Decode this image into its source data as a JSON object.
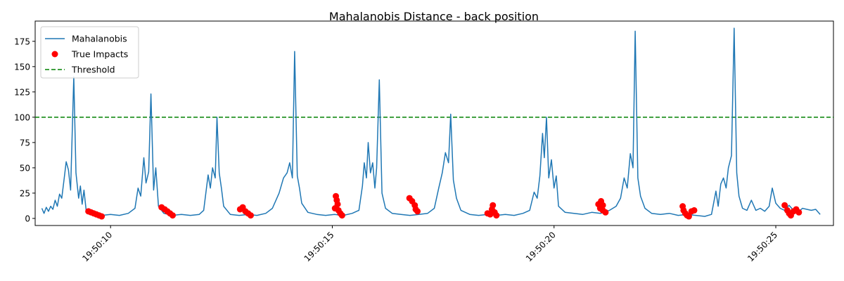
{
  "chart_data": {
    "type": "line",
    "title": "Mahalanobis Distance - back position",
    "xlabel": "",
    "ylabel": "",
    "x_axis": {
      "type": "time",
      "range": [
        "19:50:08.30",
        "19:50:26.30"
      ],
      "ticks": [
        "19:50:10",
        "19:50:15",
        "19:50:20",
        "19:50:25"
      ]
    },
    "y_axis": {
      "range": [
        -7,
        195
      ],
      "ticks": [
        0,
        25,
        50,
        75,
        100,
        125,
        150,
        175
      ]
    },
    "grid": false,
    "legend": {
      "placement": "top-left",
      "entries": [
        {
          "label": "Mahalanobis",
          "kind": "line"
        },
        {
          "label": "True Impacts",
          "kind": "marker"
        },
        {
          "label": "Threshold",
          "kind": "dashed-line"
        }
      ]
    },
    "series": [
      {
        "name": "Mahalanobis",
        "color": "#1f77b4",
        "points": [
          [
            "19:50:08.45",
            10
          ],
          [
            "19:50:08.50",
            5
          ],
          [
            "19:50:08.55",
            11
          ],
          [
            "19:50:08.60",
            7
          ],
          [
            "19:50:08.65",
            12
          ],
          [
            "19:50:08.70",
            9
          ],
          [
            "19:50:08.75",
            18
          ],
          [
            "19:50:08.80",
            12
          ],
          [
            "19:50:08.85",
            24
          ],
          [
            "19:50:08.90",
            20
          ],
          [
            "19:50:08.95",
            38
          ],
          [
            "19:50:09.00",
            56
          ],
          [
            "19:50:09.05",
            48
          ],
          [
            "19:50:09.10",
            28
          ],
          [
            "19:50:09.17",
            140
          ],
          [
            "19:50:09.22",
            45
          ],
          [
            "19:50:09.28",
            20
          ],
          [
            "19:50:09.32",
            32
          ],
          [
            "19:50:09.36",
            14
          ],
          [
            "19:50:09.40",
            28
          ],
          [
            "19:50:09.45",
            8
          ],
          [
            "19:50:09.60",
            4
          ],
          [
            "19:50:09.80",
            3
          ],
          [
            "19:50:10.00",
            4
          ],
          [
            "19:50:10.20",
            3
          ],
          [
            "19:50:10.40",
            5
          ],
          [
            "19:50:10.55",
            10
          ],
          [
            "19:50:10.62",
            30
          ],
          [
            "19:50:10.68",
            22
          ],
          [
            "19:50:10.75",
            60
          ],
          [
            "19:50:10.80",
            35
          ],
          [
            "19:50:10.86",
            46
          ],
          [
            "19:50:10.91",
            123
          ],
          [
            "19:50:10.97",
            28
          ],
          [
            "19:50:11.02",
            50
          ],
          [
            "19:50:11.08",
            12
          ],
          [
            "19:50:11.20",
            5
          ],
          [
            "19:50:11.40",
            3
          ],
          [
            "19:50:11.60",
            4
          ],
          [
            "19:50:11.80",
            3
          ],
          [
            "19:50:12.00",
            4
          ],
          [
            "19:50:12.10",
            8
          ],
          [
            "19:50:12.20",
            43
          ],
          [
            "19:50:12.25",
            30
          ],
          [
            "19:50:12.30",
            50
          ],
          [
            "19:50:12.36",
            40
          ],
          [
            "19:50:12.40",
            100
          ],
          [
            "19:50:12.45",
            45
          ],
          [
            "19:50:12.50",
            30
          ],
          [
            "19:50:12.55",
            12
          ],
          [
            "19:50:12.70",
            4
          ],
          [
            "19:50:12.90",
            3
          ],
          [
            "19:50:13.10",
            4
          ],
          [
            "19:50:13.30",
            3
          ],
          [
            "19:50:13.50",
            5
          ],
          [
            "19:50:13.65",
            10
          ],
          [
            "19:50:13.80",
            25
          ],
          [
            "19:50:13.90",
            40
          ],
          [
            "19:50:13.98",
            45
          ],
          [
            "19:50:14.04",
            55
          ],
          [
            "19:50:14.10",
            40
          ],
          [
            "19:50:14.15",
            165
          ],
          [
            "19:50:14.21",
            42
          ],
          [
            "19:50:14.26",
            30
          ],
          [
            "19:50:14.31",
            15
          ],
          [
            "19:50:14.45",
            6
          ],
          [
            "19:50:14.65",
            4
          ],
          [
            "19:50:14.85",
            3
          ],
          [
            "19:50:15.05",
            4
          ],
          [
            "19:50:15.25",
            3
          ],
          [
            "19:50:15.45",
            5
          ],
          [
            "19:50:15.60",
            8
          ],
          [
            "19:50:15.68",
            32
          ],
          [
            "19:50:15.72",
            55
          ],
          [
            "19:50:15.77",
            40
          ],
          [
            "19:50:15.81",
            75
          ],
          [
            "19:50:15.86",
            45
          ],
          [
            "19:50:15.91",
            55
          ],
          [
            "19:50:15.96",
            30
          ],
          [
            "19:50:16.00",
            50
          ],
          [
            "19:50:16.06",
            137
          ],
          [
            "19:50:16.12",
            25
          ],
          [
            "19:50:16.20",
            10
          ],
          [
            "19:50:16.35",
            5
          ],
          [
            "19:50:16.55",
            4
          ],
          [
            "19:50:16.75",
            3
          ],
          [
            "19:50:16.95",
            4
          ],
          [
            "19:50:17.15",
            5
          ],
          [
            "19:50:17.30",
            10
          ],
          [
            "19:50:17.40",
            30
          ],
          [
            "19:50:17.48",
            45
          ],
          [
            "19:50:17.55",
            65
          ],
          [
            "19:50:17.62",
            55
          ],
          [
            "19:50:17.67",
            103
          ],
          [
            "19:50:17.73",
            38
          ],
          [
            "19:50:17.80",
            20
          ],
          [
            "19:50:17.90",
            8
          ],
          [
            "19:50:18.10",
            4
          ],
          [
            "19:50:18.30",
            3
          ],
          [
            "19:50:18.50",
            4
          ],
          [
            "19:50:18.70",
            3
          ],
          [
            "19:50:18.90",
            4
          ],
          [
            "19:50:19.10",
            3
          ],
          [
            "19:50:19.30",
            5
          ],
          [
            "19:50:19.45",
            8
          ],
          [
            "19:50:19.55",
            26
          ],
          [
            "19:50:19.62",
            20
          ],
          [
            "19:50:19.68",
            42
          ],
          [
            "19:50:19.74",
            84
          ],
          [
            "19:50:19.78",
            60
          ],
          [
            "19:50:19.83",
            100
          ],
          [
            "19:50:19.88",
            40
          ],
          [
            "19:50:19.94",
            58
          ],
          [
            "19:50:20.00",
            30
          ],
          [
            "19:50:20.05",
            42
          ],
          [
            "19:50:20.10",
            12
          ],
          [
            "19:50:20.25",
            6
          ],
          [
            "19:50:20.45",
            5
          ],
          [
            "19:50:20.65",
            4
          ],
          [
            "19:50:20.85",
            6
          ],
          [
            "19:50:21.05",
            5
          ],
          [
            "19:50:21.25",
            8
          ],
          [
            "19:50:21.40",
            12
          ],
          [
            "19:50:21.50",
            20
          ],
          [
            "19:50:21.58",
            40
          ],
          [
            "19:50:21.65",
            30
          ],
          [
            "19:50:21.72",
            64
          ],
          [
            "19:50:21.78",
            50
          ],
          [
            "19:50:21.83",
            185
          ],
          [
            "19:50:21.89",
            40
          ],
          [
            "19:50:21.95",
            22
          ],
          [
            "19:50:22.05",
            10
          ],
          [
            "19:50:22.20",
            5
          ],
          [
            "19:50:22.40",
            4
          ],
          [
            "19:50:22.60",
            5
          ],
          [
            "19:50:22.80",
            3
          ],
          [
            "19:50:23.00",
            4
          ],
          [
            "19:50:23.20",
            3
          ],
          [
            "19:50:23.40",
            2
          ],
          [
            "19:50:23.55",
            4
          ],
          [
            "19:50:23.65",
            27
          ],
          [
            "19:50:23.70",
            12
          ],
          [
            "19:50:23.76",
            34
          ],
          [
            "19:50:23.82",
            40
          ],
          [
            "19:50:23.88",
            30
          ],
          [
            "19:50:23.93",
            50
          ],
          [
            "19:50:24.00",
            62
          ],
          [
            "19:50:24.06",
            188
          ],
          [
            "19:50:24.12",
            45
          ],
          [
            "19:50:24.17",
            22
          ],
          [
            "19:50:24.25",
            10
          ],
          [
            "19:50:24.35",
            8
          ],
          [
            "19:50:24.45",
            18
          ],
          [
            "19:50:24.55",
            8
          ],
          [
            "19:50:24.65",
            10
          ],
          [
            "19:50:24.75",
            7
          ],
          [
            "19:50:24.85",
            12
          ],
          [
            "19:50:24.92",
            30
          ],
          [
            "19:50:25.00",
            15
          ],
          [
            "19:50:25.10",
            10
          ],
          [
            "19:50:25.20",
            8
          ],
          [
            "19:50:25.30",
            13
          ],
          [
            "19:50:25.40",
            8
          ],
          [
            "19:50:25.50",
            6
          ],
          [
            "19:50:25.60",
            10
          ],
          [
            "19:50:25.70",
            9
          ],
          [
            "19:50:25.80",
            8
          ],
          [
            "19:50:25.90",
            9
          ],
          [
            "19:50:26.00",
            4
          ]
        ]
      },
      {
        "name": "True Impacts",
        "color": "#ff0000",
        "points": [
          [
            "19:50:09.50",
            7
          ],
          [
            "19:50:09.56",
            6
          ],
          [
            "19:50:09.62",
            5
          ],
          [
            "19:50:09.68",
            4
          ],
          [
            "19:50:09.74",
            3
          ],
          [
            "19:50:09.80",
            2
          ],
          [
            "19:50:11.15",
            11
          ],
          [
            "19:50:11.22",
            9
          ],
          [
            "19:50:11.28",
            7
          ],
          [
            "19:50:11.34",
            5
          ],
          [
            "19:50:11.40",
            3
          ],
          [
            "19:50:12.92",
            9
          ],
          [
            "19:50:12.98",
            11
          ],
          [
            "19:50:13.04",
            7
          ],
          [
            "19:50:13.10",
            5
          ],
          [
            "19:50:13.16",
            3
          ],
          [
            "19:50:15.08",
            22
          ],
          [
            "19:50:15.10",
            18
          ],
          [
            "19:50:15.12",
            14
          ],
          [
            "19:50:15.06",
            10
          ],
          [
            "19:50:15.14",
            8
          ],
          [
            "19:50:15.18",
            5
          ],
          [
            "19:50:15.22",
            3
          ],
          [
            "19:50:16.74",
            20
          ],
          [
            "19:50:16.80",
            17
          ],
          [
            "19:50:16.86",
            13
          ],
          [
            "19:50:16.88",
            9
          ],
          [
            "19:50:16.92",
            7
          ],
          [
            "19:50:18.50",
            5
          ],
          [
            "19:50:18.56",
            4
          ],
          [
            "19:50:18.60",
            9
          ],
          [
            "19:50:18.62",
            13
          ],
          [
            "19:50:18.66",
            6
          ],
          [
            "19:50:18.70",
            3
          ],
          [
            "19:50:21.00",
            14
          ],
          [
            "19:50:21.06",
            17
          ],
          [
            "19:50:21.10",
            13
          ],
          [
            "19:50:21.04",
            10
          ],
          [
            "19:50:21.10",
            8
          ],
          [
            "19:50:21.16",
            6
          ],
          [
            "19:50:22.90",
            12
          ],
          [
            "19:50:22.92",
            8
          ],
          [
            "19:50:22.96",
            5
          ],
          [
            "19:50:23.00",
            3
          ],
          [
            "19:50:23.04",
            2
          ],
          [
            "19:50:23.10",
            7
          ],
          [
            "19:50:23.16",
            8
          ],
          [
            "19:50:25.20",
            13
          ],
          [
            "19:50:25.26",
            8
          ],
          [
            "19:50:25.30",
            5
          ],
          [
            "19:50:25.34",
            3
          ],
          [
            "19:50:25.40",
            7
          ],
          [
            "19:50:25.46",
            9
          ],
          [
            "19:50:25.52",
            6
          ]
        ]
      },
      {
        "name": "Threshold",
        "color": "#008000",
        "y": 100
      }
    ]
  }
}
